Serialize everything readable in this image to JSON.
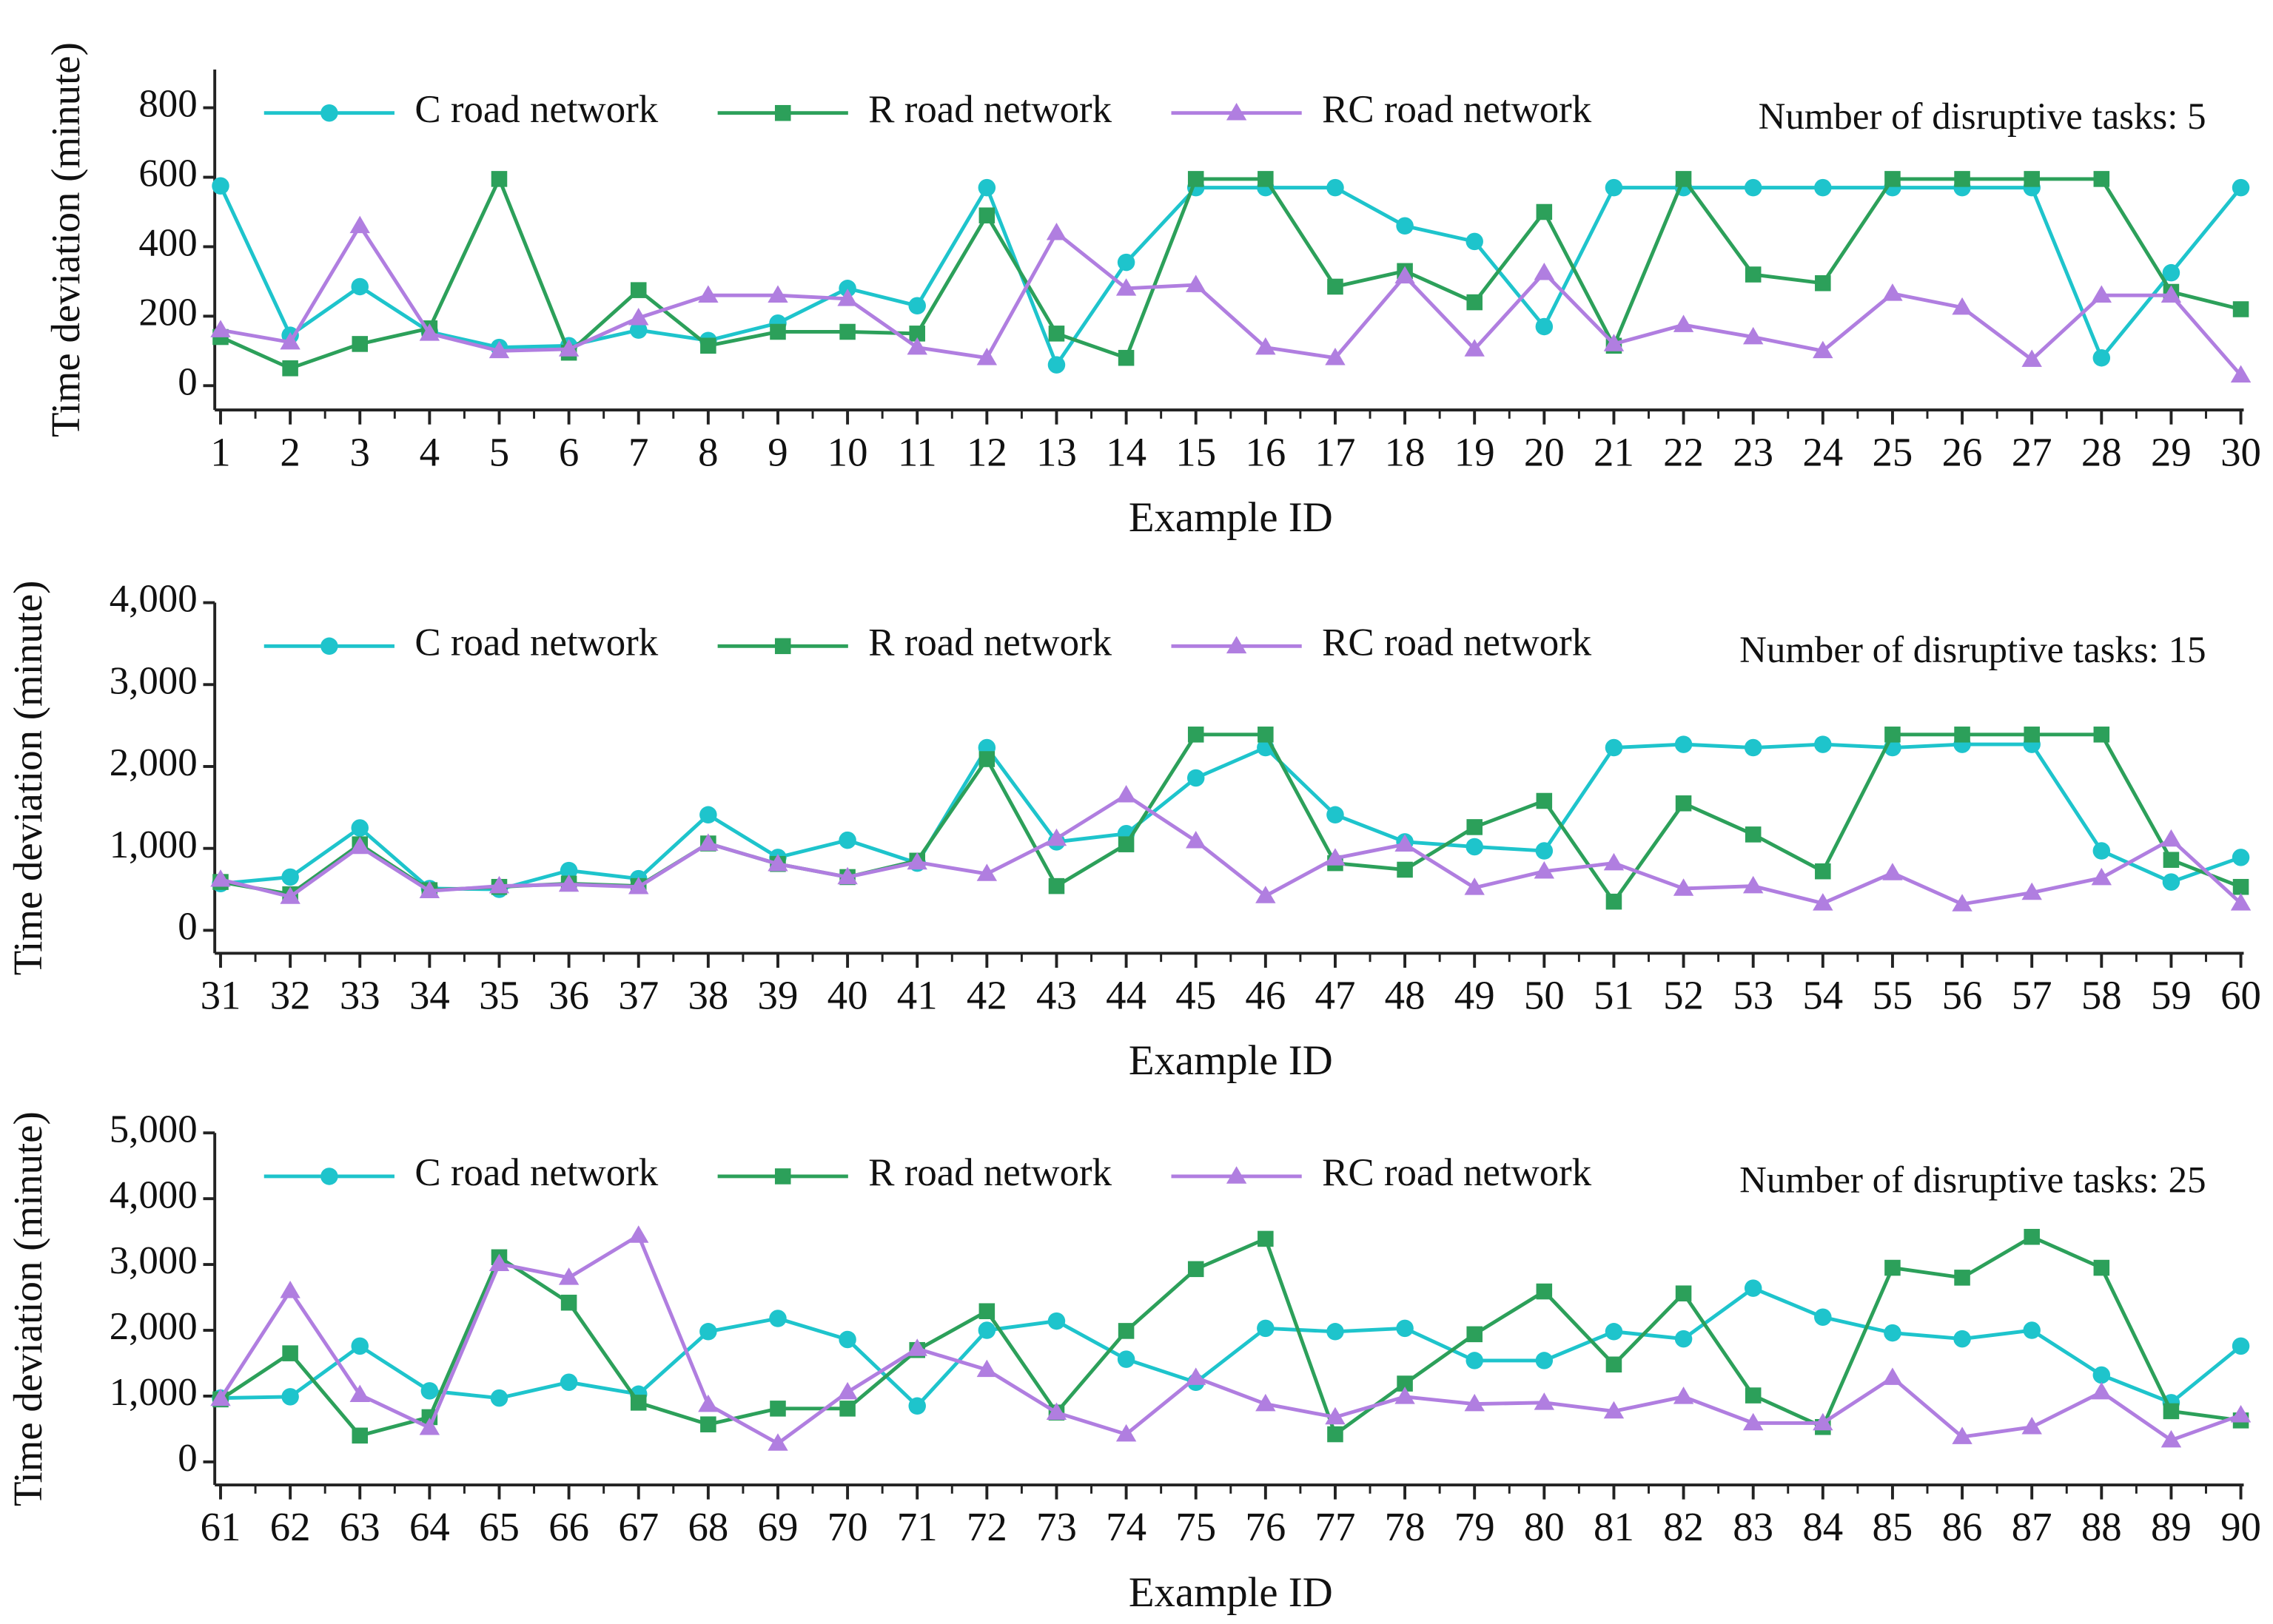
{
  "chart_data": [
    {
      "type": "line",
      "xlabel": "Example ID",
      "ylabel": "Time deviation (minute)",
      "annotation": "Number of disruptive tasks: 5",
      "x": [
        1,
        2,
        3,
        4,
        5,
        6,
        7,
        8,
        9,
        10,
        11,
        12,
        13,
        14,
        15,
        16,
        17,
        18,
        19,
        20,
        21,
        22,
        23,
        24,
        25,
        26,
        27,
        28,
        29,
        30
      ],
      "xlim": [
        1,
        30
      ],
      "xticks": [
        1,
        2,
        3,
        4,
        5,
        6,
        7,
        8,
        9,
        10,
        11,
        12,
        13,
        14,
        15,
        16,
        17,
        18,
        19,
        20,
        21,
        22,
        23,
        24,
        25,
        26,
        27,
        28,
        29,
        30
      ],
      "ylim": [
        -70,
        910
      ],
      "yticks": [
        0,
        200,
        400,
        600,
        800
      ],
      "series": [
        {
          "name": "C road network",
          "color": "#1ec4cc",
          "values": [
            575,
            145,
            285,
            155,
            110,
            115,
            160,
            130,
            180,
            280,
            230,
            570,
            60,
            355,
            570,
            570,
            570,
            460,
            415,
            170,
            570,
            570,
            570,
            570,
            570,
            570,
            570,
            80,
            325,
            570
          ]
        },
        {
          "name": "R road network",
          "color": "#2ca05a",
          "values": [
            140,
            50,
            120,
            165,
            595,
            95,
            275,
            115,
            155,
            155,
            150,
            490,
            150,
            80,
            595,
            595,
            285,
            330,
            240,
            500,
            115,
            595,
            320,
            295,
            595,
            595,
            595,
            595,
            270,
            220
          ]
        },
        {
          "name": "RC road network",
          "color": "#b07ee0",
          "values": [
            160,
            125,
            460,
            150,
            100,
            105,
            195,
            260,
            260,
            250,
            110,
            80,
            440,
            280,
            290,
            110,
            80,
            315,
            105,
            325,
            120,
            175,
            140,
            100,
            265,
            225,
            75,
            260,
            260,
            30
          ]
        }
      ]
    },
    {
      "type": "line",
      "xlabel": "Example ID",
      "ylabel": "Time deviation (minute)",
      "annotation": "Number of disruptive tasks: 15",
      "x": [
        31,
        32,
        33,
        34,
        35,
        36,
        37,
        38,
        39,
        40,
        41,
        42,
        43,
        44,
        45,
        46,
        47,
        48,
        49,
        50,
        51,
        52,
        53,
        54,
        55,
        56,
        57,
        58,
        59,
        60
      ],
      "xlim": [
        31,
        60
      ],
      "xticks": [
        31,
        32,
        33,
        34,
        35,
        36,
        37,
        38,
        39,
        40,
        41,
        42,
        43,
        44,
        45,
        46,
        47,
        48,
        49,
        50,
        51,
        52,
        53,
        54,
        55,
        56,
        57,
        58,
        59,
        60
      ],
      "ylim": [
        -280,
        4000
      ],
      "yticks": [
        0,
        {
          "value": 1000,
          "label": "1,000"
        },
        {
          "value": 2000,
          "label": "2,000"
        },
        {
          "value": 3000,
          "label": "3,000"
        },
        {
          "value": 4000,
          "label": "4,000"
        }
      ],
      "series": [
        {
          "name": "C road network",
          "color": "#1ec4cc",
          "values": [
            570,
            650,
            1250,
            510,
            500,
            730,
            630,
            1410,
            890,
            1100,
            820,
            2230,
            1080,
            1180,
            1860,
            2230,
            1410,
            1080,
            1020,
            970,
            2230,
            2270,
            2230,
            2270,
            2230,
            2270,
            2270,
            970,
            590,
            890
          ]
        },
        {
          "name": "R road network",
          "color": "#2ca05a",
          "values": [
            590,
            440,
            1050,
            490,
            530,
            570,
            540,
            1060,
            810,
            650,
            850,
            2090,
            540,
            1050,
            2390,
            2390,
            820,
            740,
            1260,
            1580,
            350,
            1550,
            1170,
            720,
            2390,
            2390,
            2390,
            2390,
            860,
            530
          ]
        },
        {
          "name": "RC road network",
          "color": "#b07ee0",
          "values": [
            620,
            410,
            1020,
            480,
            540,
            560,
            530,
            1060,
            810,
            650,
            830,
            690,
            1120,
            1650,
            1090,
            420,
            880,
            1050,
            520,
            720,
            820,
            510,
            540,
            330,
            700,
            320,
            460,
            640,
            1110,
            330
          ]
        }
      ]
    },
    {
      "type": "line",
      "xlabel": "Example ID",
      "ylabel": "Time deviation (minute)",
      "annotation": "Number of disruptive tasks: 25",
      "x": [
        61,
        62,
        63,
        64,
        65,
        66,
        67,
        68,
        69,
        70,
        71,
        72,
        73,
        74,
        75,
        76,
        77,
        78,
        79,
        80,
        81,
        82,
        83,
        84,
        85,
        86,
        87,
        88,
        89,
        90
      ],
      "xlim": [
        61,
        90
      ],
      "xticks": [
        61,
        62,
        63,
        64,
        65,
        66,
        67,
        68,
        69,
        70,
        71,
        72,
        73,
        74,
        75,
        76,
        77,
        78,
        79,
        80,
        81,
        82,
        83,
        84,
        85,
        86,
        87,
        88,
        89,
        90
      ],
      "ylim": [
        -350,
        5000
      ],
      "yticks": [
        0,
        {
          "value": 1000,
          "label": "1,000"
        },
        {
          "value": 2000,
          "label": "2,000"
        },
        {
          "value": 3000,
          "label": "3,000"
        },
        {
          "value": 4000,
          "label": "4,000"
        },
        {
          "value": 5000,
          "label": "5,000"
        }
      ],
      "series": [
        {
          "name": "C road network",
          "color": "#1ec4cc",
          "values": [
            970,
            990,
            1760,
            1080,
            970,
            1210,
            1030,
            1980,
            2180,
            1860,
            850,
            2000,
            2140,
            1560,
            1210,
            2030,
            1980,
            2030,
            1540,
            1540,
            1980,
            1870,
            2640,
            2200,
            1960,
            1870,
            2000,
            1320,
            900,
            1760
          ]
        },
        {
          "name": "R road network",
          "color": "#2ca05a",
          "values": [
            950,
            1650,
            400,
            680,
            3110,
            2420,
            900,
            570,
            810,
            810,
            1700,
            2290,
            750,
            1990,
            2930,
            3390,
            420,
            1190,
            1940,
            2590,
            1480,
            2560,
            1010,
            530,
            2950,
            2800,
            3420,
            2950,
            770,
            630
          ]
        },
        {
          "name": "RC road network",
          "color": "#b07ee0",
          "values": [
            960,
            2600,
            1020,
            520,
            3010,
            2800,
            3440,
            870,
            280,
            1060,
            1720,
            1400,
            750,
            420,
            1280,
            880,
            680,
            990,
            880,
            900,
            770,
            990,
            590,
            590,
            1280,
            380,
            530,
            1060,
            330,
            710
          ]
        }
      ]
    }
  ]
}
